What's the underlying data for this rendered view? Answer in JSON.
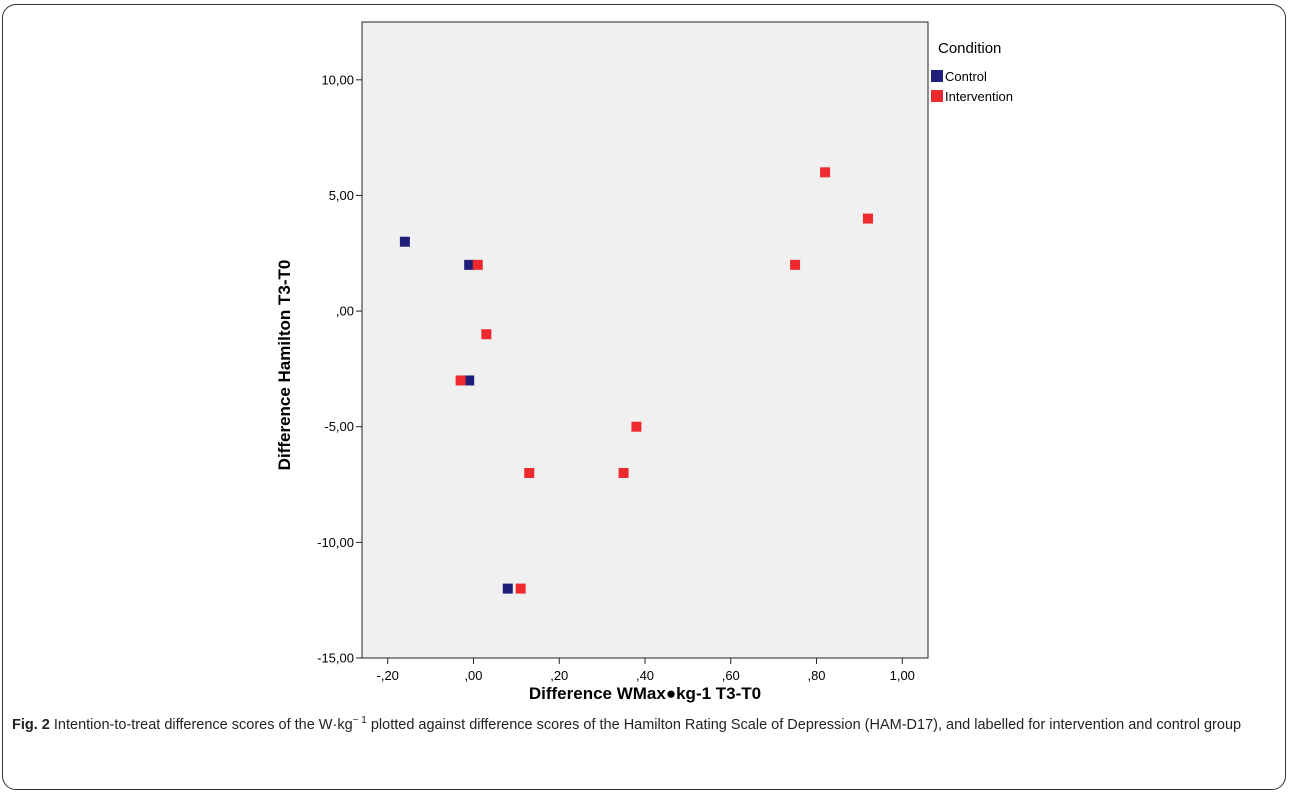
{
  "chart_data": {
    "type": "scatter",
    "xlabel": "Difference WMax●kg-1 T3-T0",
    "ylabel": "Difference Hamilton T3-T0",
    "xlim": [
      -0.26,
      1.06
    ],
    "ylim": [
      -15,
      12.5
    ],
    "x_ticks": [
      -0.2,
      0.0,
      0.2,
      0.4,
      0.6,
      0.8,
      1.0
    ],
    "x_tick_labels": [
      "-,20",
      ",00",
      ",20",
      ",40",
      ",60",
      ",80",
      "1,00"
    ],
    "y_ticks": [
      10,
      5,
      0,
      -5,
      -10,
      -15
    ],
    "y_tick_labels": [
      "10,00",
      "5,00",
      ",00",
      "-5,00",
      "-10,00",
      "-15,00"
    ],
    "legend": {
      "title": "Condition",
      "position": "top-right-outside"
    },
    "series": [
      {
        "name": "Control",
        "color": "#1f1f7a",
        "points": [
          {
            "x": -0.16,
            "y": 3
          },
          {
            "x": -0.01,
            "y": 2
          },
          {
            "x": -0.01,
            "y": -3
          },
          {
            "x": 0.08,
            "y": -12
          }
        ]
      },
      {
        "name": "Intervention",
        "color": "#ee2a2f",
        "points": [
          {
            "x": 0.01,
            "y": 2
          },
          {
            "x": 0.03,
            "y": -1
          },
          {
            "x": -0.03,
            "y": -3
          },
          {
            "x": 0.13,
            "y": -7
          },
          {
            "x": 0.11,
            "y": -12
          },
          {
            "x": 0.35,
            "y": -7
          },
          {
            "x": 0.38,
            "y": -5
          },
          {
            "x": 0.75,
            "y": 2
          },
          {
            "x": 0.82,
            "y": 6
          },
          {
            "x": 0.92,
            "y": 4
          }
        ]
      }
    ],
    "plot_background": "#f0f0f0",
    "grid": false
  },
  "caption": {
    "label": "Fig. 2",
    "text_before_sup": " Intention-to-treat difference scores of the W·kg",
    "sup": "− 1",
    "text_after_sup": " plotted against difference scores of the Hamilton Rating Scale of Depression (HAM-D17), and labelled for intervention and control group"
  }
}
